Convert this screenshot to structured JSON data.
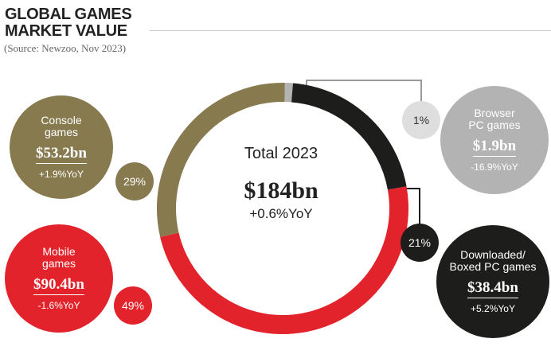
{
  "header": {
    "title_lines": [
      "GLOBAL GAMES",
      "MARKET VALUE"
    ],
    "source": "(Source: Newzoo, Nov 2023)"
  },
  "center": {
    "title": "Total 2023",
    "value": "$184bn",
    "yoy": "+0.6%YoY"
  },
  "segments": [
    {
      "name_lines": [
        "Browser",
        "PC games"
      ],
      "value": "$1.9bn",
      "yoy": "-16.9%YoY",
      "pct_label": "1%"
    },
    {
      "name_lines": [
        "Downloaded/",
        "Boxed PC games"
      ],
      "value": "$38.4bn",
      "yoy": "+5.2%YoY",
      "pct_label": "21%"
    },
    {
      "name_lines": [
        "Mobile",
        "games"
      ],
      "value": "$90.4bn",
      "yoy": "-1.6%YoY",
      "pct_label": "49%"
    },
    {
      "name_lines": [
        "Console",
        "games"
      ],
      "value": "$53.2bn",
      "yoy": "+1.9%YoY",
      "pct_label": "29%"
    }
  ],
  "colors": {
    "browser": "#b3b3b3",
    "pc": "#1d1d1b",
    "mobile": "#e3232b",
    "console": "#877a4f",
    "connector": "#999999"
  },
  "chart_data": {
    "type": "pie",
    "variant": "donut",
    "title": "GLOBAL GAMES MARKET VALUE",
    "subtitle": "(Source: Newzoo, Nov 2023)",
    "categories": [
      "Browser PC games",
      "Downloaded/Boxed PC games",
      "Mobile games",
      "Console games"
    ],
    "values": [
      1.9,
      38.4,
      90.4,
      53.2
    ],
    "percent": [
      1,
      21,
      49,
      29
    ],
    "yoy_percent": [
      -16.9,
      5.2,
      -1.6,
      1.9
    ],
    "total": 184,
    "total_yoy_percent": 0.6,
    "unit": "$bn"
  }
}
